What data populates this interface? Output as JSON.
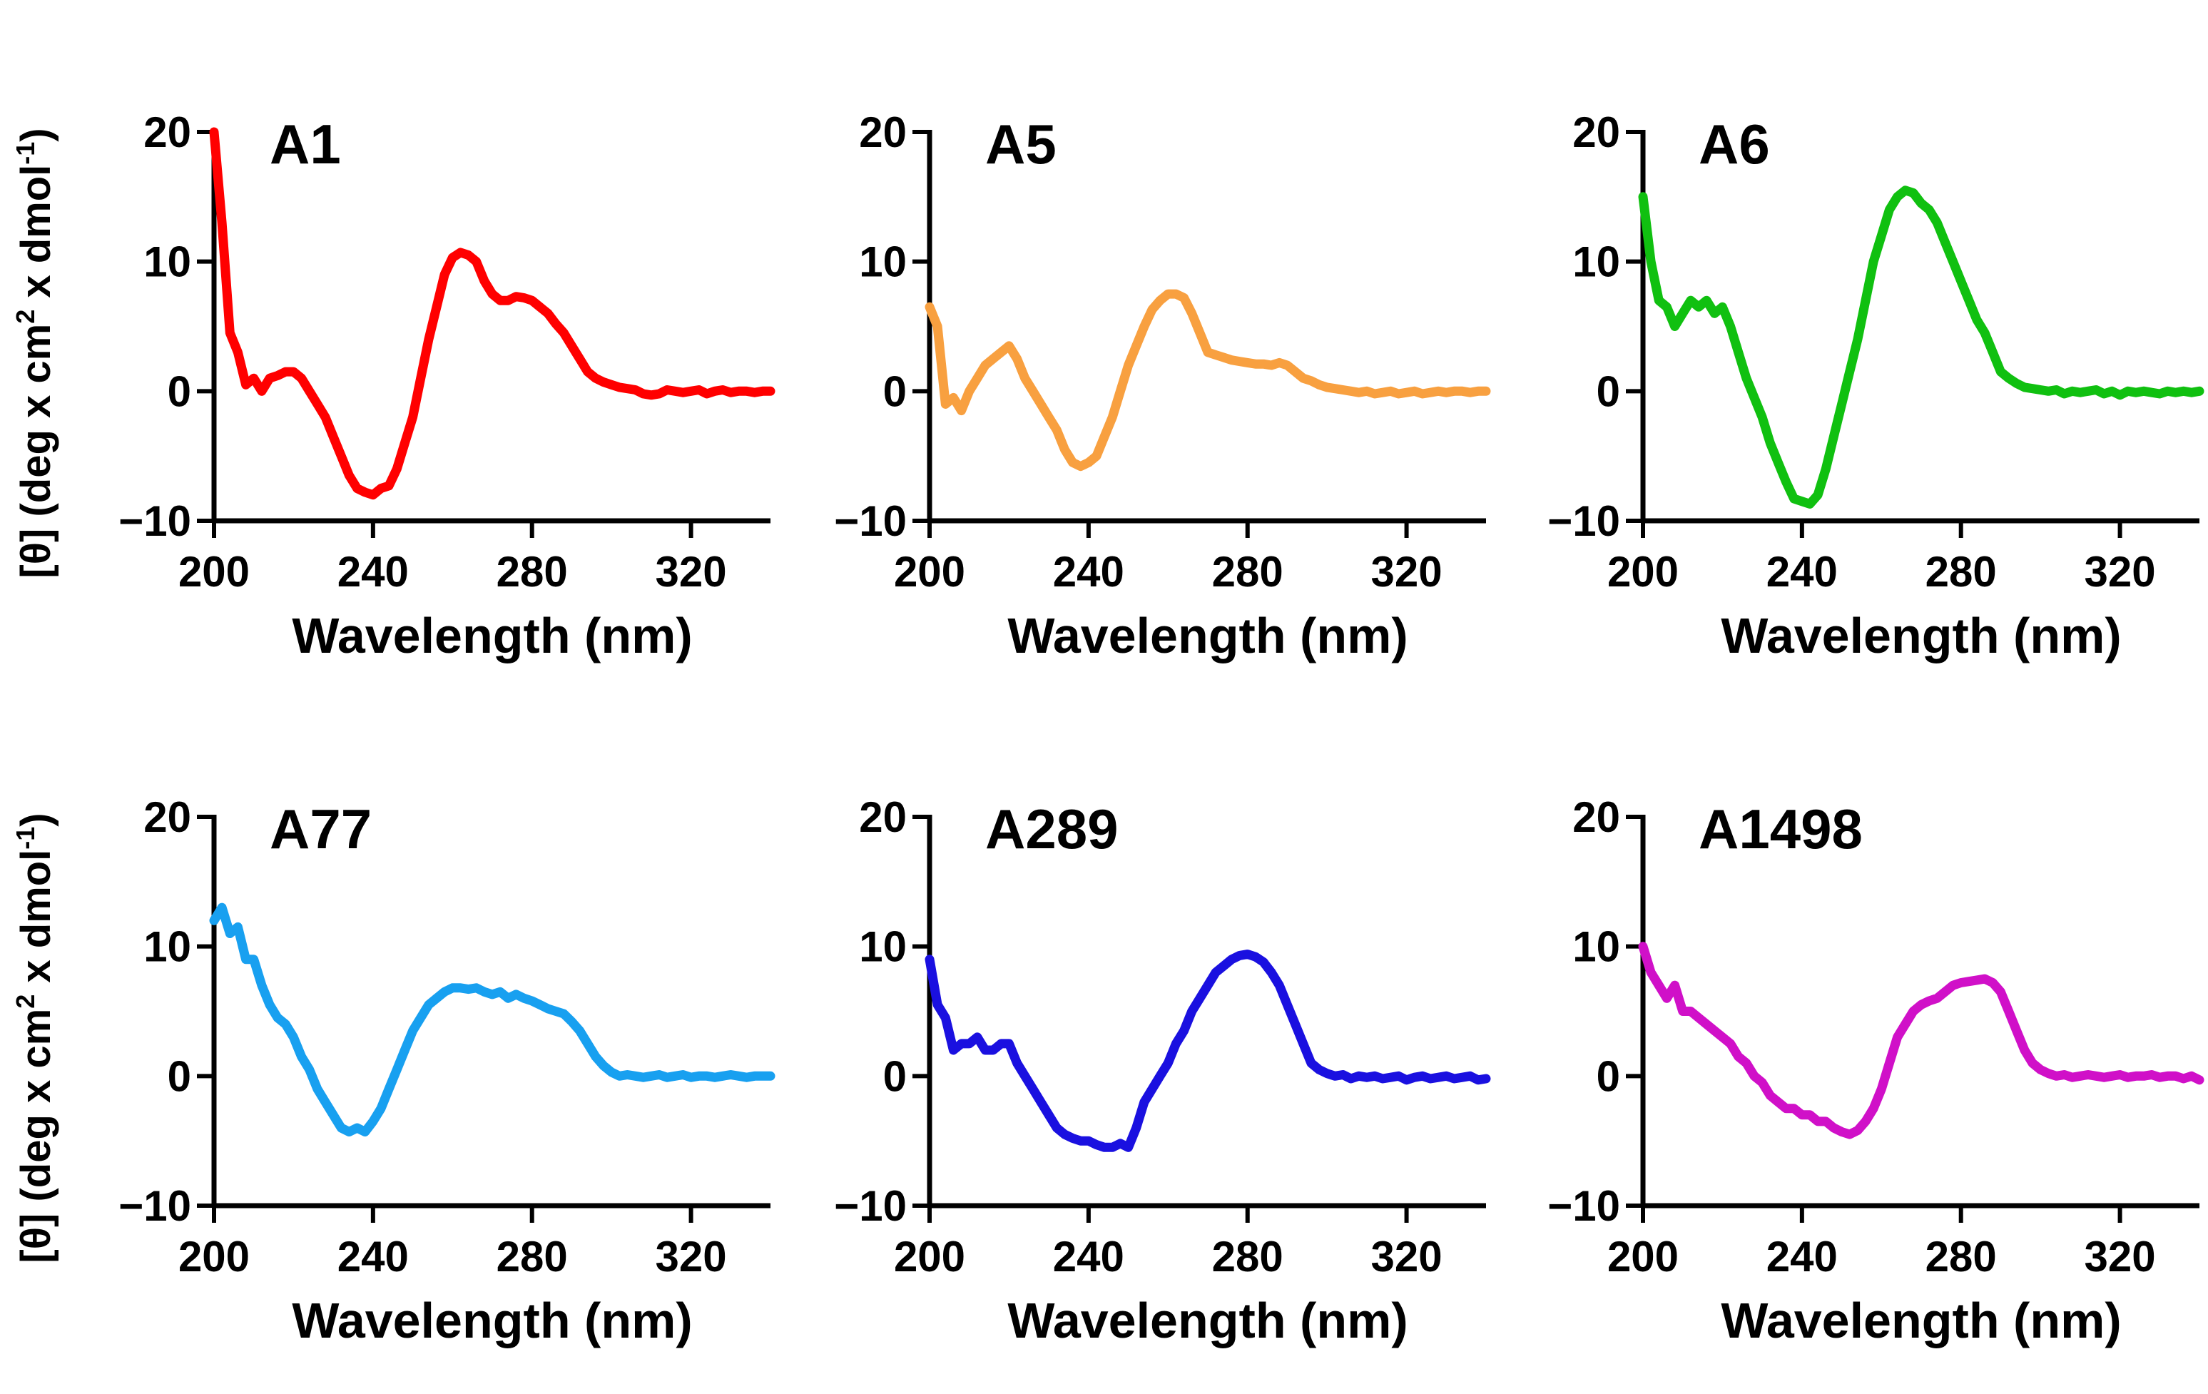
{
  "y_axis_label": {
    "prefix": "[θ] (deg x cm",
    "sup1": "2",
    "middle": " x dmol",
    "sup2": "-1",
    "suffix": ")"
  },
  "chart_data": [
    {
      "type": "line",
      "title": "A1",
      "color": "#ff0000",
      "xlabel": "Wavelength (nm)",
      "xlim": [
        200,
        340
      ],
      "ylim": [
        -10,
        20
      ],
      "xticks": [
        200,
        240,
        280,
        320
      ],
      "yticks": [
        -10,
        0,
        10,
        20
      ],
      "x": [
        200,
        202,
        204,
        206,
        208,
        210,
        212,
        214,
        216,
        218,
        220,
        222,
        224,
        226,
        228,
        230,
        232,
        234,
        236,
        238,
        240,
        242,
        244,
        246,
        248,
        250,
        252,
        254,
        256,
        258,
        260,
        262,
        264,
        266,
        268,
        270,
        272,
        274,
        276,
        278,
        280,
        282,
        284,
        286,
        288,
        290,
        292,
        294,
        296,
        298,
        300,
        302,
        304,
        306,
        308,
        310,
        312,
        314,
        316,
        318,
        320,
        322,
        324,
        326,
        328,
        330,
        332,
        334,
        336,
        338,
        340
      ],
      "y": [
        20,
        13,
        4.5,
        3,
        0.5,
        1,
        0,
        1,
        1.2,
        1.5,
        1.5,
        1,
        0,
        -1,
        -2,
        -3.5,
        -5,
        -6.5,
        -7.5,
        -7.8,
        -8,
        -7.5,
        -7.3,
        -6,
        -4,
        -2,
        1,
        4,
        6.5,
        9,
        10.3,
        10.7,
        10.5,
        10,
        8.5,
        7.5,
        7,
        7,
        7.3,
        7.2,
        7,
        6.5,
        6,
        5.2,
        4.5,
        3.5,
        2.5,
        1.5,
        1,
        0.7,
        0.5,
        0.3,
        0.2,
        0.1,
        -0.2,
        -0.3,
        -0.2,
        0.1,
        0,
        -0.1,
        0,
        0.1,
        -0.2,
        0,
        0.1,
        -0.1,
        0,
        0,
        -0.1,
        0,
        0
      ]
    },
    {
      "type": "line",
      "title": "A5",
      "color": "#f8a040",
      "xlabel": "Wavelength (nm)",
      "xlim": [
        200,
        340
      ],
      "ylim": [
        -10,
        20
      ],
      "xticks": [
        200,
        240,
        280,
        320
      ],
      "yticks": [
        -10,
        0,
        10,
        20
      ],
      "x": [
        200,
        202,
        204,
        206,
        208,
        210,
        212,
        214,
        216,
        218,
        220,
        222,
        224,
        226,
        228,
        230,
        232,
        234,
        236,
        238,
        240,
        242,
        244,
        246,
        248,
        250,
        252,
        254,
        256,
        258,
        260,
        262,
        264,
        266,
        268,
        270,
        272,
        274,
        276,
        278,
        280,
        282,
        284,
        286,
        288,
        290,
        292,
        294,
        296,
        298,
        300,
        302,
        304,
        306,
        308,
        310,
        312,
        314,
        316,
        318,
        320,
        322,
        324,
        326,
        328,
        330,
        332,
        334,
        336,
        338,
        340
      ],
      "y": [
        6.5,
        5,
        -1,
        -0.5,
        -1.5,
        0,
        1,
        2,
        2.5,
        3,
        3.5,
        2.5,
        1,
        0,
        -1,
        -2,
        -3,
        -4.5,
        -5.5,
        -5.8,
        -5.5,
        -5,
        -3.5,
        -2,
        0,
        2,
        3.5,
        5,
        6.3,
        7,
        7.5,
        7.5,
        7.2,
        6,
        4.5,
        3,
        2.8,
        2.6,
        2.4,
        2.3,
        2.2,
        2.1,
        2.1,
        2,
        2.2,
        2,
        1.5,
        1,
        0.8,
        0.5,
        0.3,
        0.2,
        0.1,
        0,
        -0.1,
        0,
        -0.2,
        -0.1,
        0,
        -0.2,
        -0.1,
        0,
        -0.2,
        -0.1,
        0,
        -0.1,
        0,
        0,
        -0.1,
        0,
        0
      ]
    },
    {
      "type": "line",
      "title": "A6",
      "color": "#10c010",
      "xlabel": "Wavelength (nm)",
      "xlim": [
        200,
        340
      ],
      "ylim": [
        -10,
        20
      ],
      "xticks": [
        200,
        240,
        280,
        320
      ],
      "yticks": [
        -10,
        0,
        10,
        20
      ],
      "x": [
        200,
        202,
        204,
        206,
        208,
        210,
        212,
        214,
        216,
        218,
        220,
        222,
        224,
        226,
        228,
        230,
        232,
        234,
        236,
        238,
        240,
        242,
        244,
        246,
        248,
        250,
        252,
        254,
        256,
        258,
        260,
        262,
        264,
        266,
        268,
        270,
        272,
        274,
        276,
        278,
        280,
        282,
        284,
        286,
        288,
        290,
        292,
        294,
        296,
        298,
        300,
        302,
        304,
        306,
        308,
        310,
        312,
        314,
        316,
        318,
        320,
        322,
        324,
        326,
        328,
        330,
        332,
        334,
        336,
        338,
        340
      ],
      "y": [
        15,
        10,
        7,
        6.5,
        5,
        6,
        7,
        6.5,
        7,
        6,
        6.5,
        5,
        3,
        1,
        -0.5,
        -2,
        -4,
        -5.5,
        -7,
        -8.3,
        -8.5,
        -8.7,
        -8,
        -6,
        -3.5,
        -1,
        1.5,
        4,
        7,
        10,
        12,
        14,
        15,
        15.5,
        15.3,
        14.5,
        14,
        13,
        11.5,
        10,
        8.5,
        7,
        5.5,
        4.5,
        3,
        1.5,
        1,
        0.6,
        0.3,
        0.2,
        0.1,
        0,
        0.1,
        -0.2,
        0,
        -0.1,
        0,
        0.1,
        -0.2,
        0,
        -0.3,
        0,
        -0.1,
        0,
        -0.1,
        -0.2,
        0,
        -0.1,
        0,
        -0.1,
        0
      ]
    },
    {
      "type": "line",
      "title": "A77",
      "color": "#18a0f0",
      "xlabel": "Wavelength (nm)",
      "xlim": [
        200,
        340
      ],
      "ylim": [
        -10,
        20
      ],
      "xticks": [
        200,
        240,
        280,
        320
      ],
      "yticks": [
        -10,
        0,
        10,
        20
      ],
      "x": [
        200,
        202,
        204,
        206,
        208,
        210,
        212,
        214,
        216,
        218,
        220,
        222,
        224,
        226,
        228,
        230,
        232,
        234,
        236,
        238,
        240,
        242,
        244,
        246,
        248,
        250,
        252,
        254,
        256,
        258,
        260,
        262,
        264,
        266,
        268,
        270,
        272,
        274,
        276,
        278,
        280,
        282,
        284,
        286,
        288,
        290,
        292,
        294,
        296,
        298,
        300,
        302,
        304,
        306,
        308,
        310,
        312,
        314,
        316,
        318,
        320,
        322,
        324,
        326,
        328,
        330,
        332,
        334,
        336,
        338,
        340
      ],
      "y": [
        12,
        13,
        11,
        11.5,
        9,
        9,
        7,
        5.5,
        4.5,
        4,
        3,
        1.5,
        0.5,
        -1,
        -2,
        -3,
        -4,
        -4.3,
        -4,
        -4.3,
        -3.5,
        -2.5,
        -1,
        0.5,
        2,
        3.5,
        4.5,
        5.5,
        6,
        6.5,
        6.8,
        6.8,
        6.7,
        6.8,
        6.5,
        6.3,
        6.5,
        6,
        6.3,
        6,
        5.8,
        5.5,
        5.2,
        5,
        4.8,
        4.2,
        3.5,
        2.5,
        1.5,
        0.8,
        0.3,
        0,
        0.1,
        0,
        -0.1,
        0,
        0.1,
        -0.1,
        0,
        0.1,
        -0.1,
        0,
        0,
        -0.1,
        0,
        0.1,
        0,
        -0.1,
        0,
        0,
        0
      ]
    },
    {
      "type": "line",
      "title": "A289",
      "color": "#1a10e0",
      "xlabel": "Wavelength (nm)",
      "xlim": [
        200,
        340
      ],
      "ylim": [
        -10,
        20
      ],
      "xticks": [
        200,
        240,
        280,
        320
      ],
      "yticks": [
        -10,
        0,
        10,
        20
      ],
      "x": [
        200,
        202,
        204,
        206,
        208,
        210,
        212,
        214,
        216,
        218,
        220,
        222,
        224,
        226,
        228,
        230,
        232,
        234,
        236,
        238,
        240,
        242,
        244,
        246,
        248,
        250,
        252,
        254,
        256,
        258,
        260,
        262,
        264,
        266,
        268,
        270,
        272,
        274,
        276,
        278,
        280,
        282,
        284,
        286,
        288,
        290,
        292,
        294,
        296,
        298,
        300,
        302,
        304,
        306,
        308,
        310,
        312,
        314,
        316,
        318,
        320,
        322,
        324,
        326,
        328,
        330,
        332,
        334,
        336,
        338,
        340
      ],
      "y": [
        9,
        5.5,
        4.5,
        2,
        2.5,
        2.5,
        3,
        2,
        2,
        2.5,
        2.5,
        1,
        0,
        -1,
        -2,
        -3,
        -4,
        -4.5,
        -4.8,
        -5,
        -5,
        -5.3,
        -5.5,
        -5.5,
        -5.2,
        -5.5,
        -4,
        -2,
        -1,
        0,
        1,
        2.5,
        3.5,
        5,
        6,
        7,
        8,
        8.5,
        9,
        9.3,
        9.4,
        9.2,
        8.8,
        8,
        7,
        5.5,
        4,
        2.5,
        1,
        0.5,
        0.2,
        0,
        0.1,
        -0.2,
        0,
        -0.1,
        0,
        -0.2,
        -0.1,
        0,
        -0.3,
        -0.1,
        0,
        -0.2,
        -0.1,
        0,
        -0.2,
        -0.1,
        0,
        -0.3,
        -0.2
      ]
    },
    {
      "type": "line",
      "title": "A1498",
      "color": "#d010c8",
      "xlabel": "Wavelength (nm)",
      "xlim": [
        200,
        340
      ],
      "ylim": [
        -10,
        20
      ],
      "xticks": [
        200,
        240,
        280,
        320
      ],
      "yticks": [
        -10,
        0,
        10,
        20
      ],
      "x": [
        200,
        202,
        204,
        206,
        208,
        210,
        212,
        214,
        216,
        218,
        220,
        222,
        224,
        226,
        228,
        230,
        232,
        234,
        236,
        238,
        240,
        242,
        244,
        246,
        248,
        250,
        252,
        254,
        256,
        258,
        260,
        262,
        264,
        266,
        268,
        270,
        272,
        274,
        276,
        278,
        280,
        282,
        284,
        286,
        288,
        290,
        292,
        294,
        296,
        298,
        300,
        302,
        304,
        306,
        308,
        310,
        312,
        314,
        316,
        318,
        320,
        322,
        324,
        326,
        328,
        330,
        332,
        334,
        336,
        338,
        340
      ],
      "y": [
        10,
        8,
        7,
        6,
        7,
        5,
        5,
        4.5,
        4,
        3.5,
        3,
        2.5,
        1.5,
        1,
        0,
        -0.5,
        -1.5,
        -2,
        -2.5,
        -2.5,
        -3,
        -3,
        -3.5,
        -3.5,
        -4,
        -4.3,
        -4.5,
        -4.2,
        -3.5,
        -2.5,
        -1,
        1,
        3,
        4,
        5,
        5.5,
        5.8,
        6,
        6.5,
        7,
        7.2,
        7.3,
        7.4,
        7.5,
        7.2,
        6.5,
        5,
        3.5,
        2,
        1,
        0.5,
        0.2,
        0,
        0.1,
        -0.1,
        0,
        0.1,
        0,
        -0.1,
        0,
        0.1,
        -0.1,
        0,
        0,
        0.1,
        -0.1,
        0,
        0,
        -0.2,
        0,
        -0.3
      ]
    }
  ]
}
